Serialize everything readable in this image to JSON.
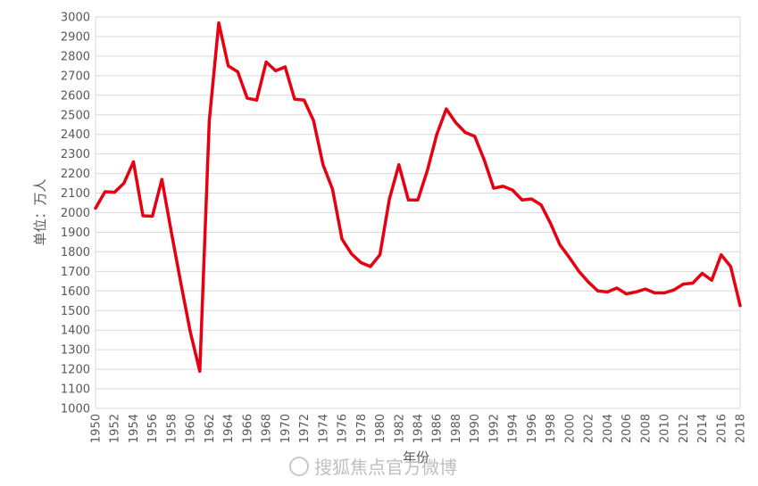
{
  "chart_data": {
    "type": "line",
    "xlabel": "年份",
    "ylabel": "单位：万人",
    "ylim": [
      1000,
      3000
    ],
    "y_step": 100,
    "xlim": [
      1950,
      2018
    ],
    "x_tick_step": 2,
    "grid": true,
    "legend": "none",
    "series": [
      {
        "color": "#e60012",
        "x": [
          1950,
          1951,
          1952,
          1953,
          1954,
          1955,
          1956,
          1957,
          1958,
          1959,
          1960,
          1961,
          1962,
          1963,
          1964,
          1965,
          1966,
          1967,
          1968,
          1969,
          1970,
          1971,
          1972,
          1973,
          1974,
          1975,
          1976,
          1977,
          1978,
          1979,
          1980,
          1981,
          1982,
          1983,
          1984,
          1985,
          1986,
          1987,
          1988,
          1989,
          1990,
          1991,
          1992,
          1993,
          1994,
          1995,
          1996,
          1997,
          1998,
          1999,
          2000,
          2001,
          2002,
          2003,
          2004,
          2005,
          2006,
          2007,
          2008,
          2009,
          2010,
          2011,
          2012,
          2013,
          2014,
          2015,
          2016,
          2017,
          2018
        ],
        "values": [
          2023,
          2107,
          2104,
          2151,
          2260,
          1984,
          1982,
          2170,
          1900,
          1640,
          1390,
          1190,
          2470,
          2970,
          2750,
          2720,
          2585,
          2575,
          2770,
          2725,
          2745,
          2580,
          2575,
          2470,
          2245,
          2120,
          1865,
          1790,
          1745,
          1725,
          1785,
          2070,
          2245,
          2065,
          2065,
          2215,
          2400,
          2530,
          2460,
          2410,
          2390,
          2270,
          2125,
          2135,
          2115,
          2065,
          2070,
          2040,
          1945,
          1835,
          1770,
          1700,
          1645,
          1600,
          1595,
          1615,
          1585,
          1595,
          1610,
          1590,
          1590,
          1605,
          1635,
          1640,
          1690,
          1655,
          1785,
          1725,
          1525
        ]
      }
    ],
    "watermark": "搜狐焦点官方微博"
  }
}
